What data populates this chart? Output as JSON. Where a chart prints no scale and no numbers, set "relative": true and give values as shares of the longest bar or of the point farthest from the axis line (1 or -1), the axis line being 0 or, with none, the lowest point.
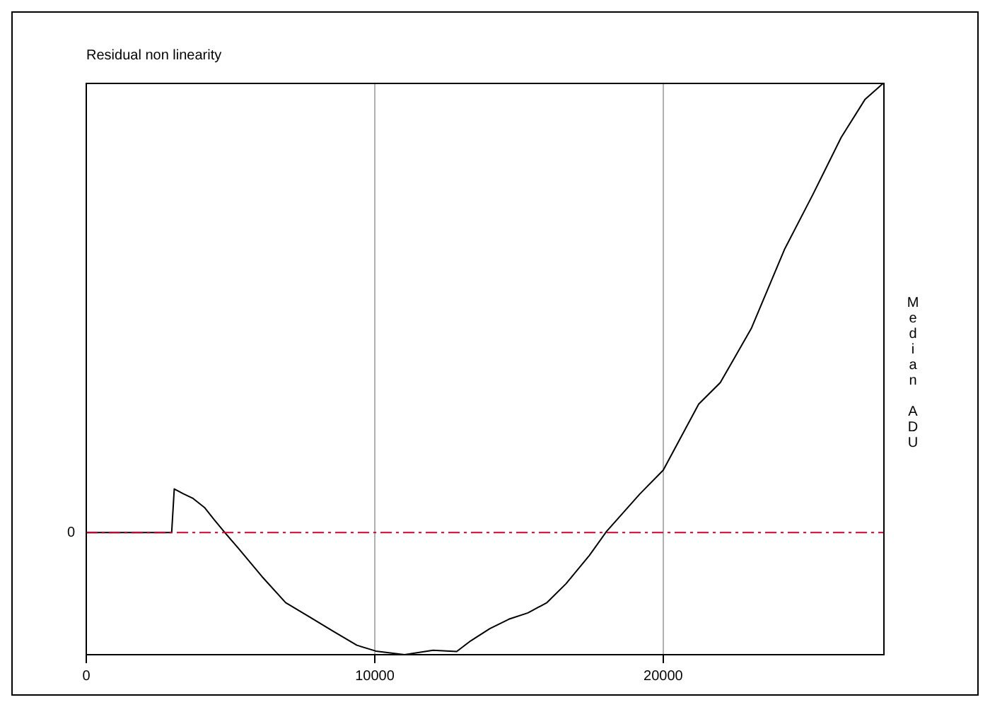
{
  "chart_data": {
    "type": "line",
    "title": "Residual non linearity",
    "ylabel": "Median ADU",
    "x": [
      0,
      2960,
      3050,
      3375,
      3700,
      4110,
      4440,
      4775,
      5270,
      6090,
      6910,
      7740,
      8560,
      9380,
      10040,
      11030,
      12020,
      12840,
      13330,
      13990,
      14650,
      15310,
      15970,
      16630,
      17440,
      18030,
      19190,
      20000,
      21230,
      21980,
      23050,
      24200,
      25190,
      26170,
      26990,
      27620
    ],
    "values": [
      0,
      0,
      0.097,
      0.086,
      0.076,
      0.055,
      0.028,
      0.002,
      -0.035,
      -0.098,
      -0.156,
      -0.188,
      -0.22,
      -0.251,
      -0.264,
      -0.272,
      -0.262,
      -0.265,
      -0.241,
      -0.214,
      -0.193,
      -0.179,
      -0.156,
      -0.114,
      -0.051,
      0.002,
      0.086,
      0.139,
      0.286,
      0.334,
      0.454,
      0.63,
      0.753,
      0.88,
      0.964,
      1
    ],
    "color": "#000000",
    "relative": true,
    "xlim": [
      0,
      27650
    ],
    "xticks": [
      0,
      10000,
      20000
    ],
    "grid": "x",
    "ref_lines": [
      {
        "axis": "y",
        "value": 0,
        "label": "0",
        "color": "#cc0033",
        "line_style": "dashed"
      }
    ]
  }
}
